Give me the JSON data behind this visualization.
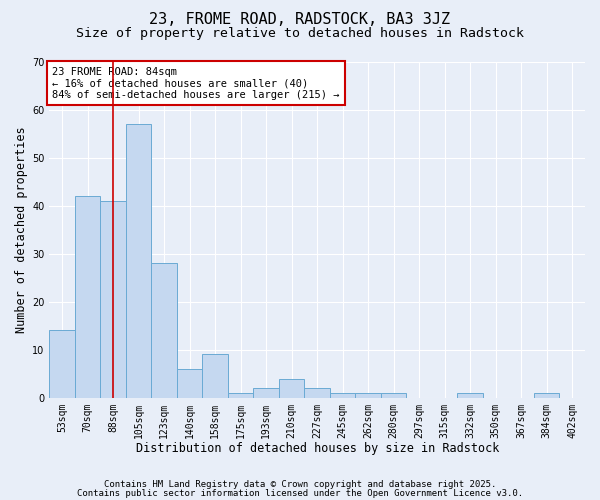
{
  "title": "23, FROME ROAD, RADSTOCK, BA3 3JZ",
  "subtitle": "Size of property relative to detached houses in Radstock",
  "xlabel": "Distribution of detached houses by size in Radstock",
  "ylabel": "Number of detached properties",
  "bin_labels": [
    "53sqm",
    "70sqm",
    "88sqm",
    "105sqm",
    "123sqm",
    "140sqm",
    "158sqm",
    "175sqm",
    "193sqm",
    "210sqm",
    "227sqm",
    "245sqm",
    "262sqm",
    "280sqm",
    "297sqm",
    "315sqm",
    "332sqm",
    "350sqm",
    "367sqm",
    "384sqm",
    "402sqm"
  ],
  "bar_heights": [
    14,
    42,
    41,
    57,
    28,
    6,
    9,
    1,
    2,
    4,
    2,
    1,
    1,
    1,
    0,
    0,
    1,
    0,
    0,
    1,
    0
  ],
  "bar_color": "#c5d8f0",
  "bar_edge_color": "#6aaad4",
  "red_line_index": 2,
  "annotation_text": "23 FROME ROAD: 84sqm\n← 16% of detached houses are smaller (40)\n84% of semi-detached houses are larger (215) →",
  "annotation_box_color": "#ffffff",
  "annotation_border_color": "#cc0000",
  "ylim": [
    0,
    70
  ],
  "yticks": [
    0,
    10,
    20,
    30,
    40,
    50,
    60,
    70
  ],
  "footer_line1": "Contains HM Land Registry data © Crown copyright and database right 2025.",
  "footer_line2": "Contains public sector information licensed under the Open Government Licence v3.0.",
  "background_color": "#e8eef8",
  "grid_color": "#ffffff",
  "title_fontsize": 11,
  "subtitle_fontsize": 9.5,
  "axis_label_fontsize": 8.5,
  "tick_fontsize": 7,
  "annotation_fontsize": 7.5,
  "footer_fontsize": 6.5
}
